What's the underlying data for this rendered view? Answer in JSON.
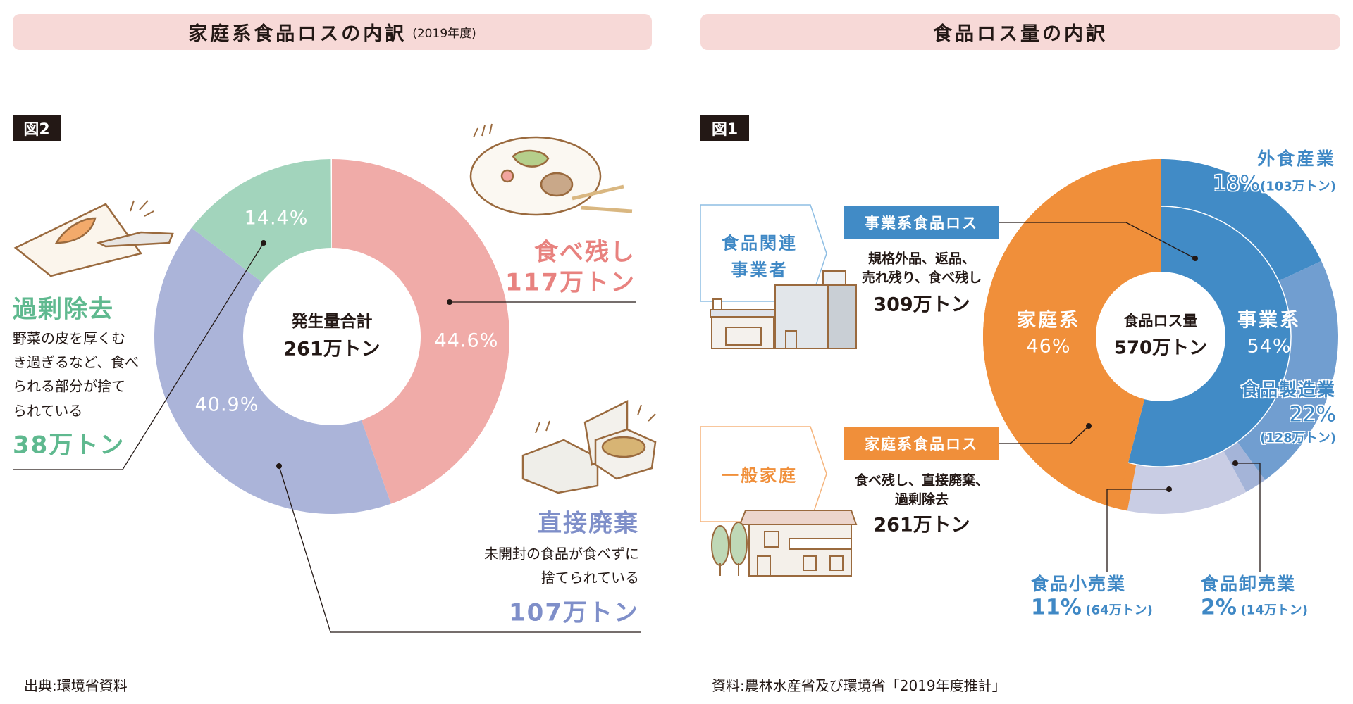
{
  "left": {
    "title": "家庭系食品ロスの内訳",
    "title_note": "(2019年度)",
    "fig_label": "図2",
    "center_label": "発生量合計",
    "center_value": "261万トン",
    "categories": [
      {
        "name": "食べ残し",
        "amount": "117万トン",
        "percent_label": "44.6%",
        "color": "#f0aba8",
        "text_color": "#e8827f"
      },
      {
        "name": "直接廃棄",
        "amount": "107万トン",
        "percent_label": "40.9%",
        "color": "#abb4d9",
        "text_color": "#7f8fc9",
        "desc": [
          "未開封の食品が食べずに",
          "捨てられている"
        ]
      },
      {
        "name": "過剰除去",
        "amount": "38万トン",
        "percent_label": "14.4%",
        "color": "#a2d4bc",
        "text_color": "#5fb98f",
        "desc": [
          "野菜の皮を厚くむ",
          "き過ぎるなど、食べ",
          "られる部分が捨て",
          "られている"
        ]
      }
    ],
    "source": "出典:環境省資料"
  },
  "right": {
    "title": "食品ロス量の内訳",
    "fig_label": "図1",
    "center_label": "食品ロス量",
    "center_value": "570万トン",
    "household": {
      "label": "家庭系",
      "percent": "46%",
      "color": "#f08f3a"
    },
    "business": {
      "label": "事業系",
      "percent": "54%",
      "color": "#418bc6"
    },
    "business_box": {
      "tag": "事業系食品ロス",
      "source_label": [
        "食品関連",
        "事業者"
      ],
      "desc": [
        "規格外品、返品、",
        "売れ残り、食べ残し"
      ],
      "amount": "309万トン"
    },
    "household_box": {
      "tag": "家庭系食品ロス",
      "source_label": "一般家庭",
      "desc": [
        "食べ残し、直接廃棄、",
        "過剰除去"
      ],
      "amount": "261万トン"
    },
    "sectors": [
      {
        "name": "外食産業",
        "percent": "18%",
        "amount": "(103万トン)",
        "color": "#418bc6"
      },
      {
        "name": "食品製造業",
        "percent": "22%",
        "amount": "(128万トン)",
        "color": "#719ed0"
      },
      {
        "name": "食品卸売業",
        "percent": "2%",
        "amount": "(14万トン)",
        "color": "#a4b4d8"
      },
      {
        "name": "食品小売業",
        "percent": "11%",
        "amount": "(64万トン)",
        "color": "#c9cde4"
      }
    ],
    "source": "資料:農林水産省及び環境省「2019年度推計」"
  },
  "chart_data": [
    {
      "type": "pie",
      "title": "家庭系食品ロスの内訳(2019年度)",
      "categories": [
        "食べ残し",
        "直接廃棄",
        "過剰除去"
      ],
      "values": [
        44.6,
        40.9,
        14.4
      ],
      "amounts_10k_tons": [
        117,
        107,
        38
      ],
      "total_10k_tons": 261,
      "donut": true
    },
    {
      "type": "pie",
      "title": "食品ロス量の内訳",
      "donut": true,
      "total_10k_tons": 570,
      "inner_ring": {
        "categories": [
          "事業系",
          "家庭系"
        ],
        "values": [
          54,
          46
        ]
      },
      "outer_ring": {
        "categories": [
          "外食産業",
          "食品製造業",
          "食品卸売業",
          "食品小売業",
          "家庭系"
        ],
        "values": [
          18,
          22,
          2,
          11,
          46
        ],
        "amounts_10k_tons": [
          103,
          128,
          14,
          64,
          261
        ]
      }
    }
  ]
}
